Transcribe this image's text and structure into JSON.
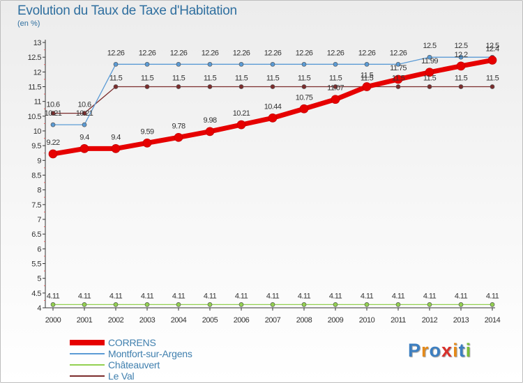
{
  "chart_data": {
    "type": "line",
    "title": "Evolution du Taux de Taxe d'Habitation",
    "ylabel": "(en %)",
    "x": [
      "2000",
      "2001",
      "2002",
      "2003",
      "2004",
      "2005",
      "2006",
      "2007",
      "2008",
      "2009",
      "2010",
      "2011",
      "2012",
      "2013",
      "2014"
    ],
    "ylim": [
      4,
      13
    ],
    "yticks": [
      "4",
      "4.5",
      "5",
      "5.5",
      "6",
      "6.5",
      "7",
      "7.5",
      "8",
      "8.5",
      "9",
      "9.5",
      "10",
      "10.5",
      "11",
      "11.5",
      "12",
      "12.5",
      "13"
    ],
    "grid": false,
    "legend_position": "bottom-left",
    "series": [
      {
        "name": "CORRENS",
        "color": "#e60000",
        "values": [
          9.22,
          9.4,
          9.4,
          9.59,
          9.78,
          9.98,
          10.21,
          10.44,
          10.75,
          11.07,
          11.5,
          11.75,
          11.99,
          12.2,
          12.4
        ],
        "labels": [
          "9.22",
          "9.4",
          "9.4",
          "9.59",
          "9.78",
          "9.98",
          "10.21",
          "10.44",
          "10.75",
          "11.07",
          "11.5",
          "11.75",
          "11.99",
          "12.2",
          "12.4"
        ]
      },
      {
        "name": "Montfort-sur-Argens",
        "color": "#5b9bd5",
        "values": [
          10.21,
          10.21,
          12.26,
          12.26,
          12.26,
          12.26,
          12.26,
          12.26,
          12.26,
          12.26,
          12.26,
          12.26,
          12.5,
          12.5,
          12.5
        ],
        "labels": [
          "10.21",
          "10.21",
          "12.26",
          "12.26",
          "12.26",
          "12.26",
          "12.26",
          "12.26",
          "12.26",
          "12.26",
          "12.26",
          "12.26",
          "12.5",
          "12.5",
          "12.5"
        ]
      },
      {
        "name": "Châteauvert",
        "color": "#92d050",
        "values": [
          4.11,
          4.11,
          4.11,
          4.11,
          4.11,
          4.11,
          4.11,
          4.11,
          4.11,
          4.11,
          4.11,
          4.11,
          4.11,
          4.11,
          4.11
        ],
        "labels": [
          "4.11",
          "4.11",
          "4.11",
          "4.11",
          "4.11",
          "4.11",
          "4.11",
          "4.11",
          "4.11",
          "4.11",
          "4.11",
          "4.11",
          "4.11",
          "4.11",
          "4.11"
        ]
      },
      {
        "name": "Le Val",
        "color": "#7b2c2c",
        "values": [
          10.6,
          10.6,
          11.5,
          11.5,
          11.5,
          11.5,
          11.5,
          11.5,
          11.5,
          11.5,
          11.5,
          11.5,
          11.5,
          11.5,
          11.5
        ],
        "labels": [
          "10.6",
          "10.6",
          "11.5",
          "11.5",
          "11.5",
          "11.5",
          "11.5",
          "11.5",
          "11.5",
          "11.5",
          "11.5",
          "11.5",
          "11.5",
          "11.5",
          "11.5"
        ]
      }
    ]
  },
  "logo": {
    "text": "Proxiti",
    "letters": [
      {
        "ch": "P",
        "color": "#3d7fc1"
      },
      {
        "ch": "r",
        "color": "#e58a1a"
      },
      {
        "ch": "o",
        "color": "#3d7fc1"
      },
      {
        "ch": "x",
        "color": "#d9302b"
      },
      {
        "ch": "i",
        "color": "#e58a1a"
      },
      {
        "ch": "t",
        "color": "#3d7fc1"
      },
      {
        "ch": "i",
        "color": "#7bbd3a"
      }
    ]
  }
}
